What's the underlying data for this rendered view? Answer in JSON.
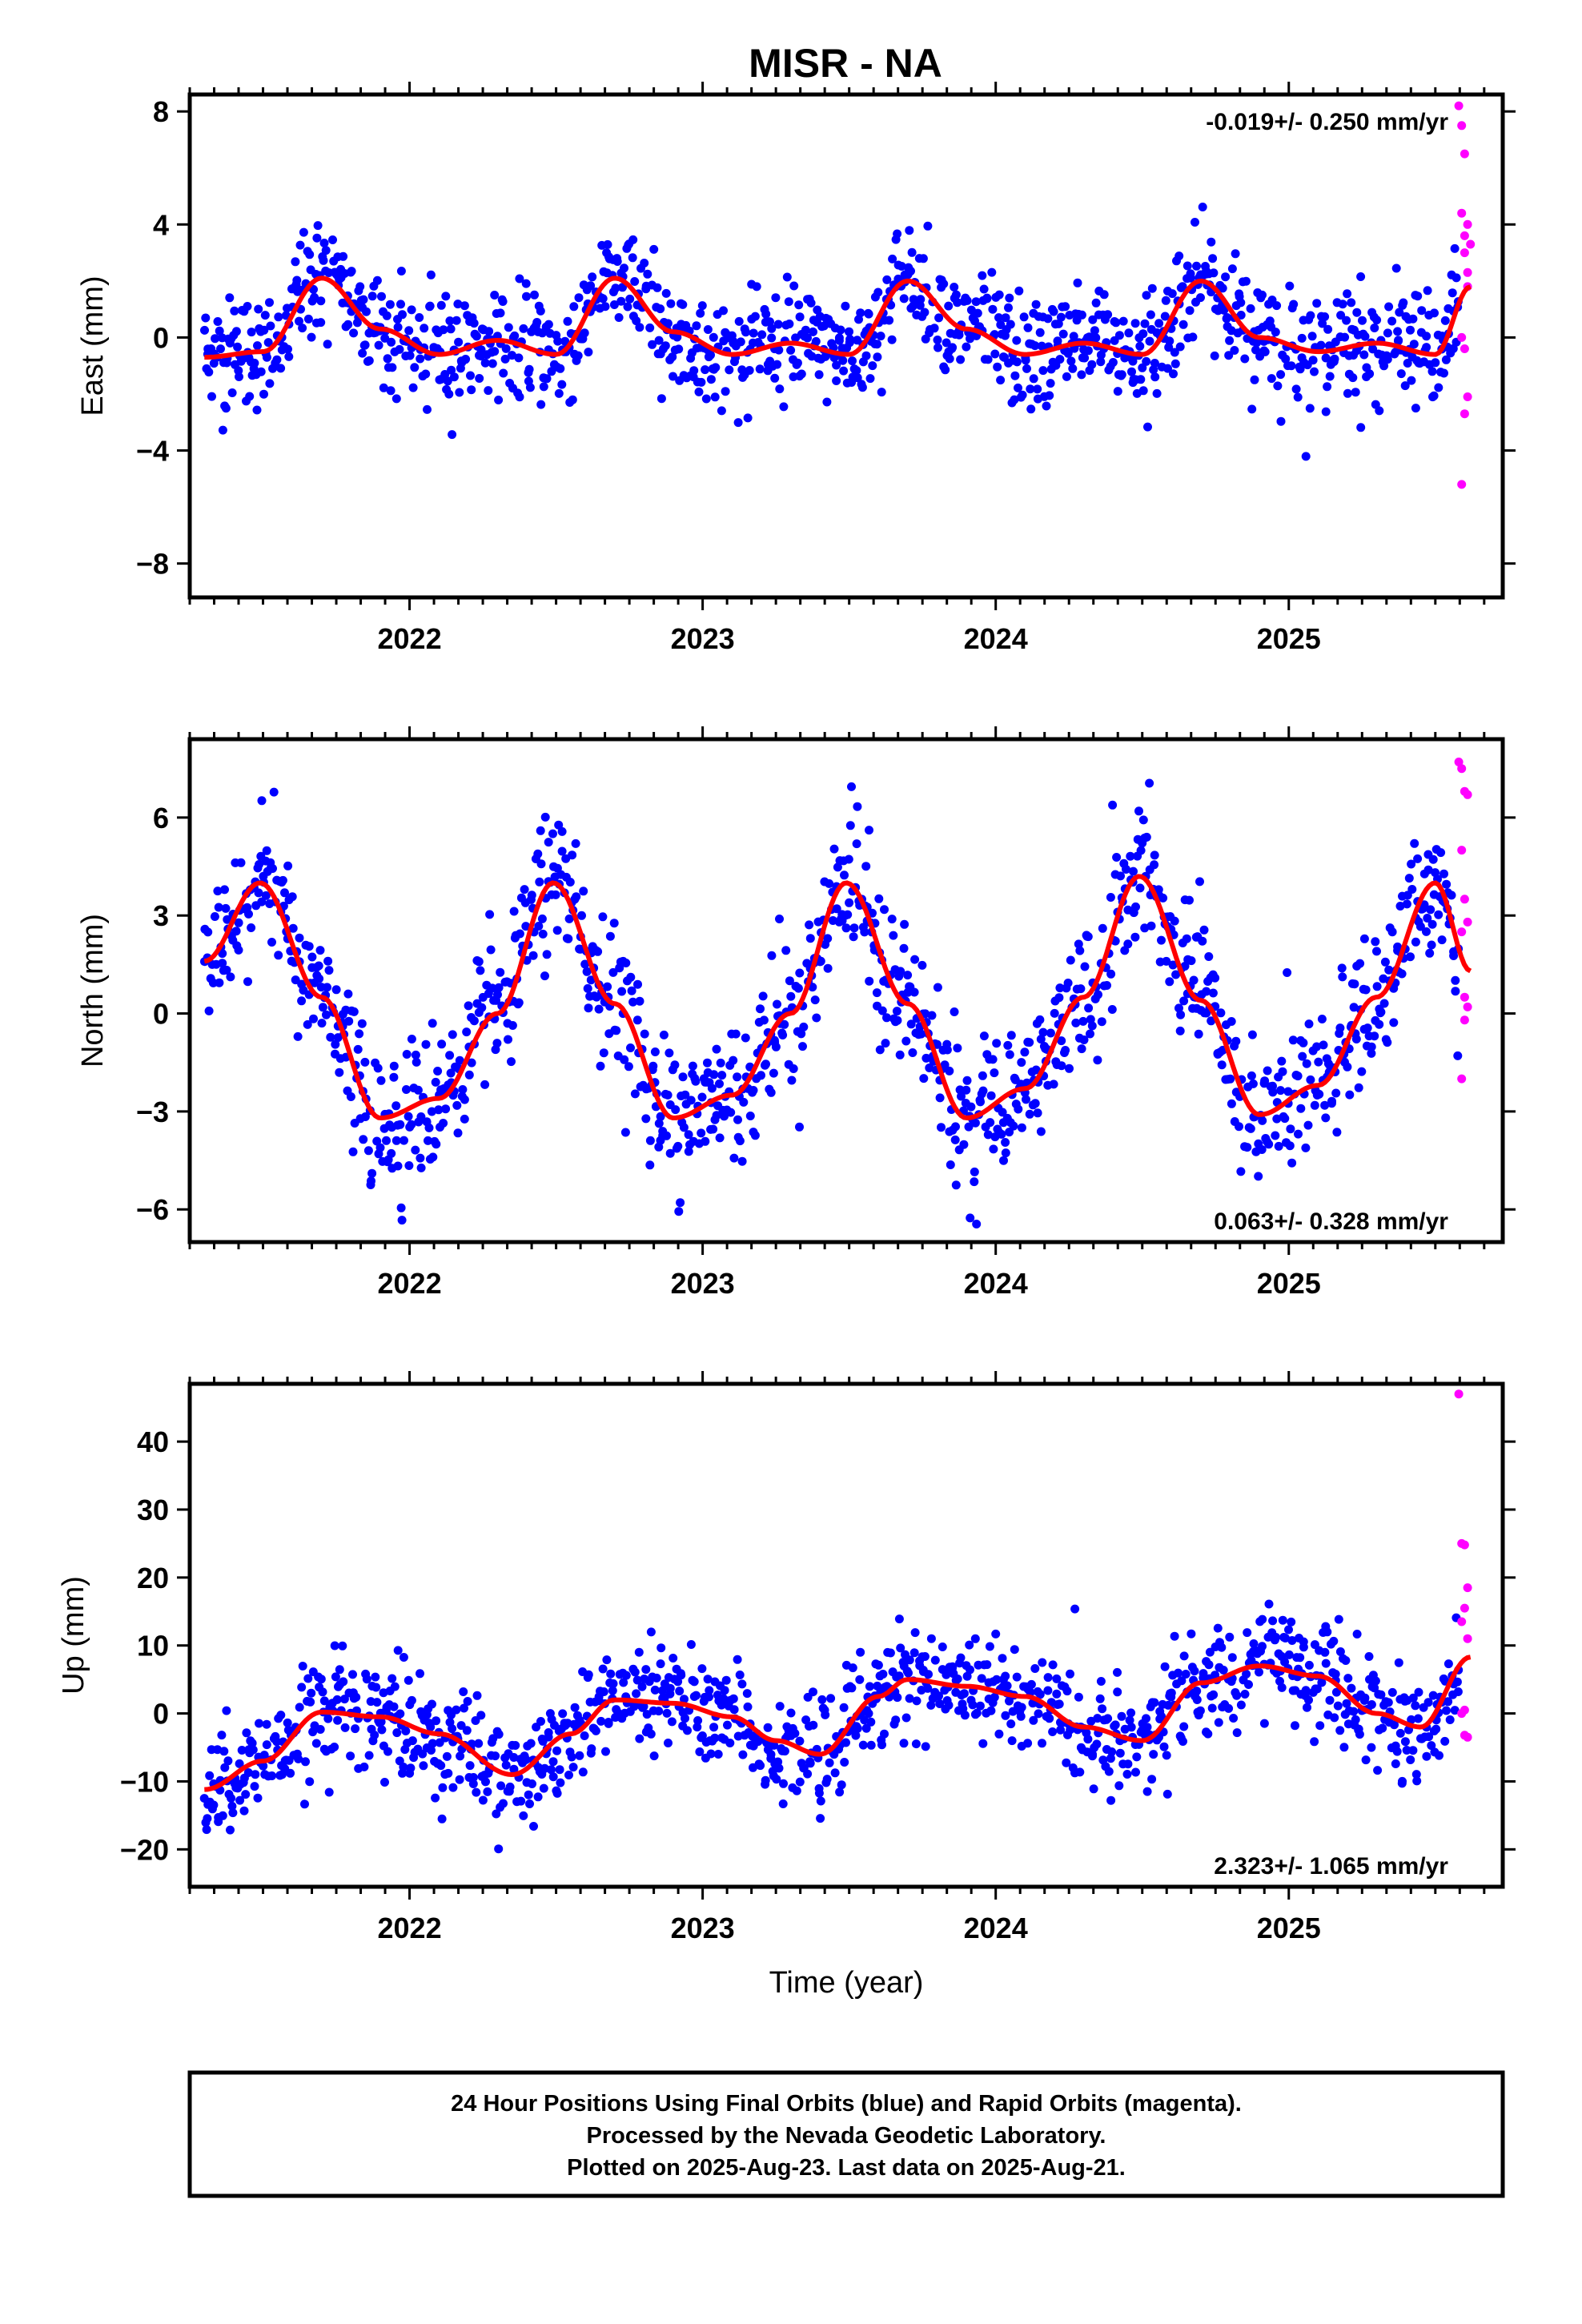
{
  "page_title": "MISR - NA",
  "footer": {
    "line1": "24 Hour Positions Using Final Orbits (blue) and Rapid Orbits (magenta).",
    "line2": "Processed by the Nevada Geodetic Laboratory.",
    "line3": "Plotted on 2025-Aug-23. Last data on 2025-Aug-21."
  },
  "colors": {
    "final": "#0000ff",
    "rapid": "#ff00ff",
    "model": "#ff0000",
    "axis": "#000000"
  },
  "chart_data": [
    {
      "type": "scatter",
      "ylabel": "East (mm)",
      "xlabel": "",
      "xlim": [
        2021.25,
        2025.73
      ],
      "ylim": [
        -9.2,
        8.6
      ],
      "yticks": [
        -8,
        -4,
        0,
        4,
        8
      ],
      "xticks": [
        2022,
        2023,
        2024,
        2025
      ],
      "rate_text": "-0.019+/- 0.250 mm/yr",
      "rate_position": "top-right",
      "series": [
        {
          "kind": "final",
          "x_range": [
            2021.3,
            2025.58
          ],
          "spread": 1.0
        },
        {
          "kind": "rapid",
          "x": [
            2025.58,
            2025.59,
            2025.6,
            2025.59,
            2025.61,
            2025.6,
            2025.62,
            2025.6,
            2025.61,
            2025.59,
            2025.6,
            2025.61,
            2025.6,
            2025.59,
            2025.61
          ],
          "y": [
            8.2,
            7.5,
            6.5,
            4.4,
            4.0,
            3.6,
            3.3,
            3.0,
            2.3,
            0.0,
            -0.4,
            -2.1,
            -2.7,
            -5.2,
            1.8
          ]
        },
        {
          "kind": "model",
          "x": [
            2021.3,
            2021.5,
            2021.7,
            2021.9,
            2022.1,
            2022.3,
            2022.5,
            2022.7,
            2022.9,
            2023.1,
            2023.3,
            2023.5,
            2023.7,
            2023.9,
            2024.1,
            2024.3,
            2024.5,
            2024.7,
            2024.9,
            2025.1,
            2025.3,
            2025.5,
            2025.62
          ],
          "y": [
            -0.7,
            -0.5,
            2.1,
            0.3,
            -0.6,
            -0.1,
            -0.6,
            2.1,
            0.2,
            -0.6,
            -0.2,
            -0.6,
            2.0,
            0.3,
            -0.6,
            -0.2,
            -0.6,
            2.0,
            0.0,
            -0.5,
            -0.2,
            -0.6,
            1.8
          ]
        }
      ]
    },
    {
      "type": "scatter",
      "ylabel": "North (mm)",
      "xlabel": "",
      "xlim": [
        2021.25,
        2025.73
      ],
      "ylim": [
        -7.0,
        8.4
      ],
      "yticks": [
        -6,
        -3,
        0,
        3,
        6
      ],
      "xticks": [
        2022,
        2023,
        2024,
        2025
      ],
      "rate_text": "0.063+/- 0.328 mm/yr",
      "rate_position": "bottom-right",
      "series": [
        {
          "kind": "final",
          "x_range": [
            2021.3,
            2025.58
          ],
          "spread": 1.1
        },
        {
          "kind": "rapid",
          "x": [
            2025.58,
            2025.59,
            2025.6,
            2025.61,
            2025.59,
            2025.6,
            2025.61,
            2025.59,
            2025.6,
            2025.61,
            2025.6,
            2025.59
          ],
          "y": [
            7.7,
            7.5,
            6.8,
            6.7,
            5.0,
            3.5,
            2.8,
            2.5,
            0.5,
            0.2,
            -0.2,
            -2.0
          ]
        },
        {
          "kind": "model",
          "x": [
            2021.3,
            2021.49,
            2021.7,
            2021.9,
            2022.1,
            2022.3,
            2022.49,
            2022.7,
            2022.9,
            2023.1,
            2023.3,
            2023.49,
            2023.7,
            2023.9,
            2024.1,
            2024.3,
            2024.49,
            2024.7,
            2024.9,
            2025.1,
            2025.3,
            2025.5,
            2025.62
          ],
          "y": [
            1.6,
            4.0,
            0.5,
            -3.2,
            -2.6,
            0.0,
            4.0,
            0.3,
            -3.2,
            -2.5,
            0.0,
            4.0,
            0.3,
            -3.2,
            -2.3,
            0.5,
            4.2,
            0.4,
            -3.1,
            -2.2,
            0.5,
            4.0,
            1.3
          ]
        }
      ]
    },
    {
      "type": "scatter",
      "ylabel": "Up (mm)",
      "xlabel": "Time (year)",
      "xlim": [
        2021.25,
        2025.73
      ],
      "ylim": [
        -25.5,
        48.5
      ],
      "yticks": [
        -20,
        -10,
        0,
        10,
        20,
        30,
        40
      ],
      "xticks": [
        2022,
        2023,
        2024,
        2025
      ],
      "rate_text": "2.323+/- 1.065 mm/yr",
      "rate_position": "bottom-right",
      "series": [
        {
          "kind": "final",
          "x_range": [
            2021.3,
            2025.58
          ],
          "spread": 4.0
        },
        {
          "kind": "rapid",
          "x": [
            2025.58,
            2025.59,
            2025.6,
            2025.61,
            2025.6,
            2025.59,
            2025.61,
            2025.6,
            2025.59,
            2025.61,
            2025.6
          ],
          "y": [
            47.0,
            25.0,
            24.8,
            18.5,
            15.5,
            13.5,
            11.0,
            0.5,
            0.0,
            -3.5,
            -3.2
          ]
        },
        {
          "kind": "model",
          "x": [
            2021.3,
            2021.5,
            2021.7,
            2021.9,
            2022.1,
            2022.35,
            2022.55,
            2022.7,
            2022.9,
            2023.1,
            2023.25,
            2023.4,
            2023.6,
            2023.7,
            2023.9,
            2024.1,
            2024.3,
            2024.5,
            2024.7,
            2024.9,
            2025.1,
            2025.3,
            2025.45,
            2025.62
          ],
          "y": [
            -11.2,
            -7.0,
            0.2,
            -0.5,
            -3.0,
            -9.0,
            -3.0,
            2.0,
            1.5,
            -0.5,
            -4.0,
            -6.0,
            2.5,
            5.0,
            4.0,
            2.5,
            -2.0,
            -4.0,
            4.5,
            7.0,
            5.5,
            0.0,
            -2.0,
            8.3
          ]
        }
      ]
    }
  ]
}
